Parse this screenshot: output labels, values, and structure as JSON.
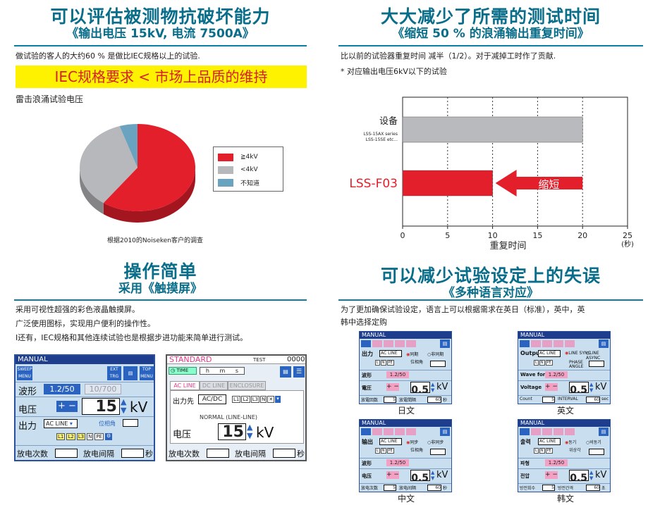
{
  "section1": {
    "title": "可以评估被测物抗破坏能力",
    "subtitle": "《输出电压 15kV, 电流 7500A》",
    "text": "做试验的客人的大约60 % 是做比IEC规格以上的试验.",
    "banner": "IEC规格要求 < 市场上品质的维持",
    "chart_heading": "雷击浪涌试验电压",
    "source": "根据2010的Noiseken客户的调查"
  },
  "chart_data": [
    {
      "type": "pie",
      "categories": [
        "≧4kV",
        "<4kV",
        "不知道"
      ],
      "values": [
        60,
        35,
        5
      ],
      "colors": [
        "#e21f2b",
        "#b7b8bc",
        "#6aa3c0"
      ],
      "legend": "right"
    },
    {
      "type": "bar",
      "orientation": "horizontal",
      "categories": [
        "设备",
        "LSS-F03"
      ],
      "category_notes": [
        "LSS-15AX series",
        "LSS-15SE etc..."
      ],
      "values": [
        20,
        10
      ],
      "colors": [
        "#b9babd",
        "#e21f2b"
      ],
      "xlabel": "重复时间",
      "xunit": "(秒)",
      "xlim": [
        0,
        25
      ],
      "xticks": [
        "0",
        "5",
        "10",
        "15",
        "20",
        "25"
      ],
      "annotation": "缩短",
      "grid": "vertical dashed"
    }
  ],
  "section2": {
    "title": "大大减少了所需的测试时间",
    "subtitle": "《缩短 50 % 的浪涌输出重复时间》",
    "text1": "比以前的试验器重复时间 减半（1/2）。对于减掉工时作了贡献.",
    "text2": "* 对应输出电压6kV以下的试验"
  },
  "section3": {
    "title": "操作简单",
    "subtitle": "采用《触摸屏》",
    "lines": [
      "采用可视性超强的彩色液晶触摸屏。",
      "广泛使用图标，实现用户便利的操作性。",
      "I还有，IEC规格和其他连续试验也是根据步进功能来简单进行测试。"
    ]
  },
  "section4": {
    "title": "可以减少试验设定上的失误",
    "subtitle": "《多种语言对应》",
    "lines": [
      "为了更加确保试验设定，语言上可以根据需求在英日（标准），英中，英",
      "韩中选择定购"
    ],
    "captions": [
      "日文",
      "英文",
      "中文",
      "韩文"
    ]
  },
  "screen_manual": {
    "header": "MANUAL",
    "sweep": "SWEEP MENU",
    "ext": "EXT TRG",
    "top": "TOP MENU",
    "wave_label": "波形",
    "wave1": "1.2/50",
    "wave2": "10/700",
    "voltage_label": "电压",
    "voltage_value": "15",
    "voltage_unit": "kV",
    "output_label": "出力",
    "output_value": "AC LINE",
    "phase_label": "位相角",
    "lines": [
      "L1",
      "L2",
      "L3",
      "N",
      "PE"
    ],
    "count_label": "放电次数",
    "interval_label": "放电间隔",
    "sec": "秒"
  },
  "screen_standard": {
    "header": "STANDARD",
    "test": "TEST",
    "test_count": "0000",
    "time": "TIME",
    "hms": "h m s",
    "tabs": [
      "AC LINE",
      "DC LINE",
      "ENCLOSURE"
    ],
    "output_label": "出力先",
    "output_value": "AC/DC",
    "lines": [
      "L1",
      "L2",
      "L3",
      "N"
    ],
    "normal": "NORMAL (LINE-LINE)",
    "voltage_label": "电压",
    "voltage_value": "15",
    "voltage_unit": "kV",
    "count_label": "放电次数",
    "interval_label": "放电间隔",
    "sec": "秒"
  },
  "mini_screens": [
    {
      "header": "MANUAL",
      "output": "出力",
      "mode1": "同期",
      "mode2": "非同期",
      "phase": "位相角",
      "wave": "波形",
      "wave_value": "1.2/50",
      "voltage": "電圧",
      "value": "0.5",
      "unit": "kV",
      "count": "放電回数",
      "count_value": "5",
      "interval": "放電間隔",
      "interval_value": "60",
      "sec": "秒"
    },
    {
      "header": "MANUAL",
      "output": "Output",
      "mode1": "LINE SYNC",
      "mode2": "LINE ASYNC",
      "phase": "PHASE ANGLE",
      "wave": "Wave form",
      "wave_value": "1.2/50",
      "voltage": "Voltage",
      "value": "0.5",
      "unit": "kV",
      "count": "Count",
      "count_value": "5",
      "interval": "INTERVAL",
      "interval_value": "60",
      "sec": "sec"
    },
    {
      "header": "MANUAL",
      "output": "输出",
      "mode1": "同步",
      "mode2": "非同步",
      "phase": "位相角",
      "wave": "波形",
      "wave_value": "1.2/50",
      "voltage": "电压",
      "value": "0.5",
      "unit": "kV",
      "count": "放电次数",
      "count_value": "5",
      "interval": "放电间隔",
      "interval_value": "60",
      "sec": "秒"
    },
    {
      "header": "MANUAL",
      "output": "출력",
      "mode1": "동기",
      "mode2": "비동기",
      "phase": "위상각",
      "wave": "파형",
      "wave_value": "1.2/50",
      "voltage": "전압",
      "value": "0.5",
      "unit": "kV",
      "count": "방전회수",
      "count_value": "5",
      "interval": "방전간격",
      "interval_value": "60",
      "sec": "초"
    }
  ],
  "mini_common": {
    "acline": "AC LINE",
    "lines": [
      "L",
      "N",
      "PE"
    ]
  }
}
